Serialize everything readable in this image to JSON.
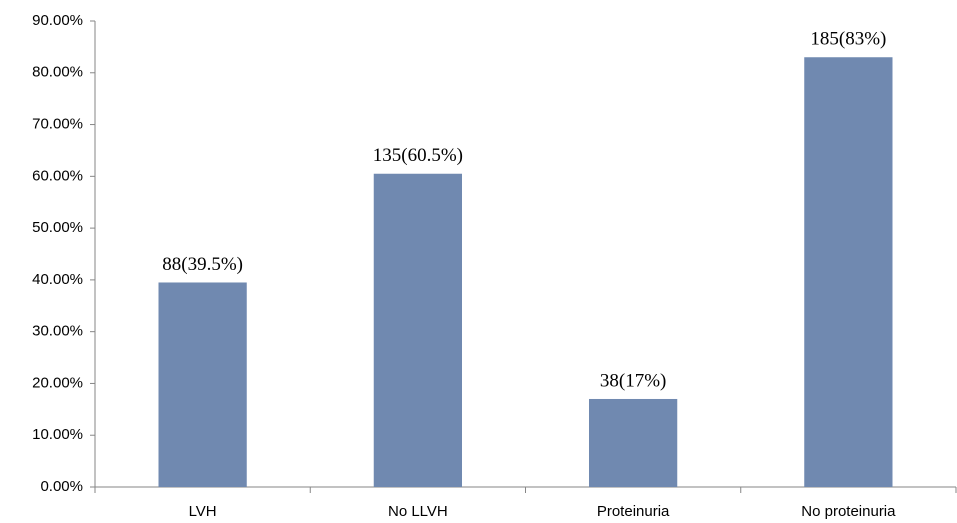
{
  "chart_data": {
    "type": "bar",
    "categories": [
      "LVH",
      "No LLVH",
      "Proteinuria",
      "No proteinuria"
    ],
    "values": [
      39.5,
      60.5,
      17,
      83
    ],
    "value_labels": [
      "88(39.5%)",
      "135(60.5%)",
      "38(17%)",
      "185(83%)"
    ],
    "color": "#7089b0",
    "ylim": [
      0,
      90
    ],
    "yticks": [
      {
        "value": 0,
        "label": "0.00%"
      },
      {
        "value": 10,
        "label": "10.00%"
      },
      {
        "value": 20,
        "label": "20.00%"
      },
      {
        "value": 30,
        "label": "30.00%"
      },
      {
        "value": 40,
        "label": "40.00%"
      },
      {
        "value": 50,
        "label": "50.00%"
      },
      {
        "value": 60,
        "label": "60.00%"
      },
      {
        "value": 70,
        "label": "70.00%"
      },
      {
        "value": 80,
        "label": "80.00%"
      },
      {
        "value": 90,
        "label": "90.00%"
      }
    ],
    "grid": false
  }
}
